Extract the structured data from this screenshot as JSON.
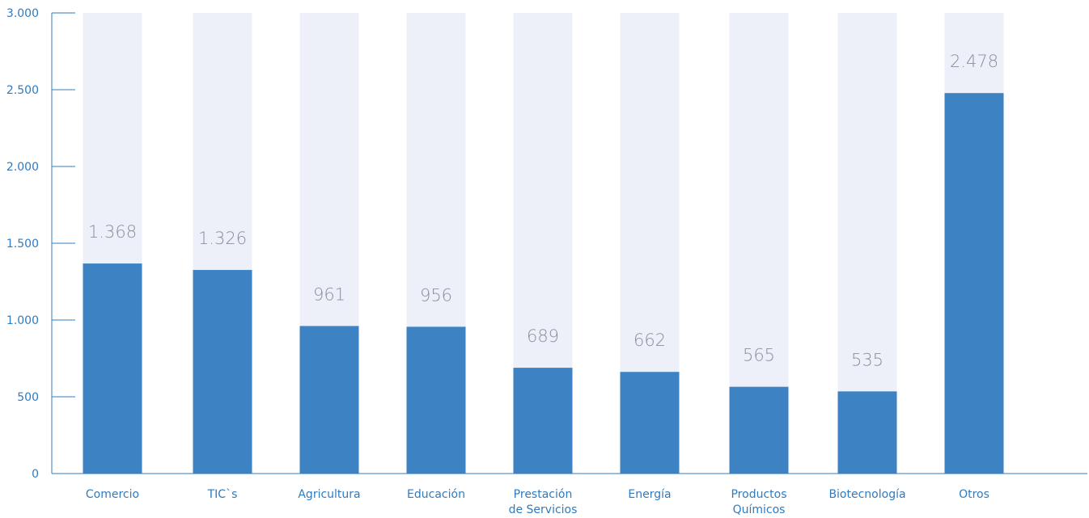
{
  "chart_data": {
    "type": "bar",
    "categories": [
      [
        "Comercio"
      ],
      [
        "TIC`s"
      ],
      [
        "Agricultura"
      ],
      [
        "Educación"
      ],
      [
        "Prestación",
        "de Servicios"
      ],
      [
        "Energía"
      ],
      [
        "Productos",
        "Químicos"
      ],
      [
        "Biotecnología"
      ],
      [
        "Otros"
      ]
    ],
    "values": [
      1368,
      1326,
      961,
      956,
      689,
      662,
      565,
      535,
      2478
    ],
    "value_labels": [
      "1.368",
      "1.326",
      "961",
      "956",
      "689",
      "662",
      "565",
      "535",
      "2.478"
    ],
    "ylim": [
      0,
      3000
    ],
    "yticks": [
      0,
      500,
      1000,
      1500,
      2000,
      2500,
      3000
    ],
    "ytick_labels": [
      "0",
      "500",
      "1.000",
      "1.500",
      "2.000",
      "2.500",
      "3.000"
    ],
    "background_bars": true,
    "grid": false,
    "colors": {
      "bar": "#3d83c4",
      "bar_background": "#edf0f9",
      "axis": "#2f7bbf",
      "data_label": "#8a8f99"
    }
  }
}
